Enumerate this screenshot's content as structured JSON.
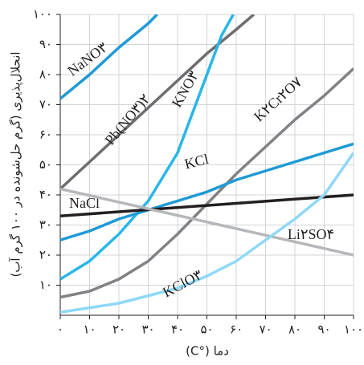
{
  "chart_data": {
    "type": "line",
    "y_label": "انحلال‌پذیری (گرم حل‌شونده در ۱۰۰ گرم آب)",
    "x_label": "دما (°C)",
    "xlim": [
      0,
      100
    ],
    "ylim": [
      0,
      100
    ],
    "xticks": [
      {
        "value": 0,
        "label": "۰"
      },
      {
        "value": 10,
        "label": "۱۰"
      },
      {
        "value": 20,
        "label": "۲۰"
      },
      {
        "value": 30,
        "label": "۳۰"
      },
      {
        "value": 40,
        "label": "۴۰"
      },
      {
        "value": 50,
        "label": "۵۰"
      },
      {
        "value": 60,
        "label": "۶۰"
      },
      {
        "value": 70,
        "label": "۷۰"
      },
      {
        "value": 80,
        "label": "۸۰"
      },
      {
        "value": 90,
        "label": "۹۰"
      },
      {
        "value": 100,
        "label": "۱۰۰"
      }
    ],
    "yticks": [
      {
        "value": 10,
        "label": "۱۰"
      },
      {
        "value": 20,
        "label": "۲۰"
      },
      {
        "value": 30,
        "label": "۳۰"
      },
      {
        "value": 40,
        "label": "۴۰"
      },
      {
        "value": 50,
        "label": "۵۰"
      },
      {
        "value": 60,
        "label": "۶۰"
      },
      {
        "value": 70,
        "label": "۷۰"
      },
      {
        "value": 80,
        "label": "۸۰"
      },
      {
        "value": 90,
        "label": "۹۰"
      },
      {
        "value": 100,
        "label": "۱۰۰"
      }
    ],
    "grid": true,
    "series": [
      {
        "name": "NaNO۳",
        "color": "#1e9ad6",
        "x": [
          0,
          10,
          20,
          30,
          33
        ],
        "values": [
          72,
          80,
          89,
          97,
          100
        ]
      },
      {
        "name": "Pb(NO۳)۲",
        "color": "#6d6e71",
        "x": [
          0,
          10,
          20,
          30,
          40,
          50,
          60,
          66
        ],
        "values": [
          42,
          51,
          60,
          69,
          78,
          87,
          95,
          100
        ]
      },
      {
        "name": "KNO۳",
        "color": "#29b6e9",
        "x": [
          0,
          10,
          20,
          30,
          40,
          50,
          55,
          59
        ],
        "values": [
          12,
          18,
          27,
          38,
          54,
          80,
          93,
          100
        ]
      },
      {
        "name": "K۲Cr۲O۷",
        "color": "#808285",
        "x": [
          0,
          10,
          20,
          30,
          40,
          50,
          60,
          70,
          80,
          90,
          100
        ],
        "values": [
          6,
          8,
          12,
          18,
          27,
          37,
          47,
          56,
          65,
          73,
          82
        ]
      },
      {
        "name": "KCl",
        "color": "#1e9ad6",
        "x": [
          0,
          10,
          20,
          30,
          40,
          50,
          60,
          70,
          80,
          90,
          100
        ],
        "values": [
          25,
          28,
          32,
          35,
          38,
          41,
          45,
          48,
          51,
          54,
          57
        ]
      },
      {
        "name": "NaCl",
        "color": "#231f20",
        "x": [
          0,
          100
        ],
        "values": [
          33,
          40
        ]
      },
      {
        "name": "Li۲SO۴",
        "color": "#b5b7ba",
        "x": [
          0,
          100
        ],
        "values": [
          42,
          20
        ]
      },
      {
        "name": "KClO۳",
        "color": "#8ed8f8",
        "x": [
          0,
          20,
          40,
          50,
          60,
          70,
          80,
          90,
          100
        ],
        "values": [
          1,
          4,
          9,
          13,
          18,
          25,
          32,
          40,
          54
        ]
      }
    ]
  }
}
